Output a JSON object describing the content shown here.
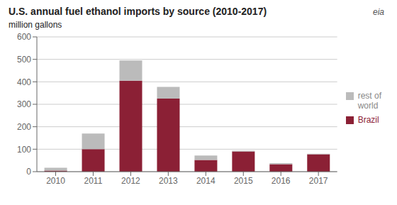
{
  "chart_data": {
    "type": "bar",
    "title": "U.S. annual fuel ethanol imports by source (2010-2017)",
    "y_label": "million gallons",
    "categories": [
      "2010",
      "2011",
      "2012",
      "2013",
      "2014",
      "2015",
      "2016",
      "2017"
    ],
    "series": [
      {
        "name": "Brazil",
        "color": "#8B2035",
        "values": [
          5,
          100,
          405,
          325,
          52,
          90,
          33,
          77
        ]
      },
      {
        "name": "rest of\nworld",
        "color": "#BBBBBB",
        "values": [
          12,
          70,
          90,
          52,
          20,
          3,
          5,
          3
        ]
      }
    ],
    "stacked": true,
    "ylim": [
      0,
      600
    ],
    "yticks": [
      0,
      100,
      200,
      300,
      400,
      500,
      600
    ],
    "grid": true,
    "legend": "right",
    "annotations": [
      "eia"
    ]
  }
}
